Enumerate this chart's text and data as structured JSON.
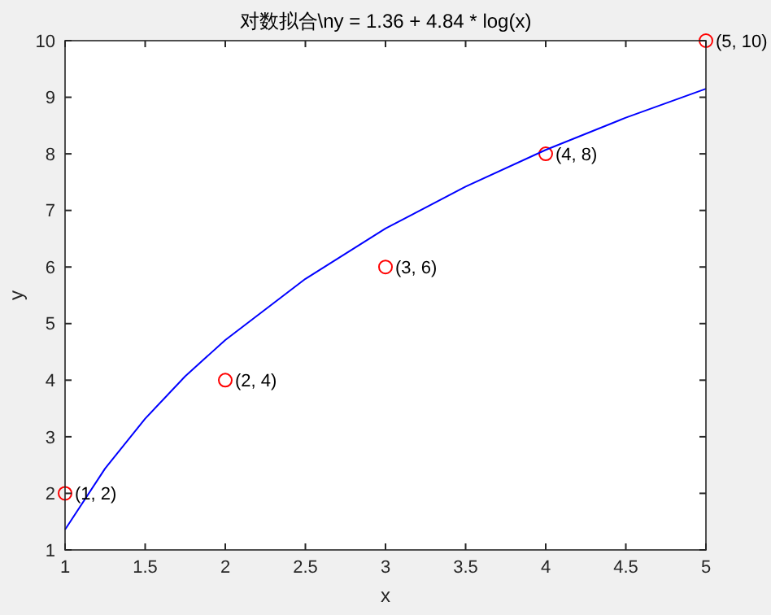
{
  "chart_data": {
    "type": "scatter",
    "title": "对数拟合\\ny = 1.36 + 4.84 * log(x)",
    "xlabel": "x",
    "ylabel": "y",
    "xlim": [
      1,
      5
    ],
    "ylim": [
      1,
      10
    ],
    "xticks": [
      1,
      1.5,
      2,
      2.5,
      3,
      3.5,
      4,
      4.5,
      5
    ],
    "yticks": [
      1,
      2,
      3,
      4,
      5,
      6,
      7,
      8,
      9,
      10
    ],
    "grid": false,
    "series": [
      {
        "color": "#ff0000",
        "marker": "circle",
        "x": [
          1,
          2,
          3,
          4,
          5
        ],
        "values": [
          2,
          4,
          6,
          8,
          10
        ]
      },
      {
        "type": "line",
        "color": "#0000ff",
        "marker": "none",
        "x": [
          1,
          1.25,
          1.5,
          1.75,
          2,
          2.5,
          3,
          3.5,
          4,
          4.5,
          5
        ],
        "values": [
          1.36,
          2.44,
          3.32,
          4.07,
          4.71,
          5.79,
          6.68,
          7.42,
          8.07,
          8.64,
          9.15
        ]
      }
    ],
    "annotations": [
      {
        "text": "(1, 2)",
        "x": 1,
        "y": 2
      },
      {
        "text": "(2, 4)",
        "x": 2,
        "y": 4
      },
      {
        "text": "(3, 6)",
        "x": 3,
        "y": 6
      },
      {
        "text": "(4, 8)",
        "x": 4,
        "y": 8
      },
      {
        "text": "(5, 10)",
        "x": 5,
        "y": 10
      }
    ]
  }
}
